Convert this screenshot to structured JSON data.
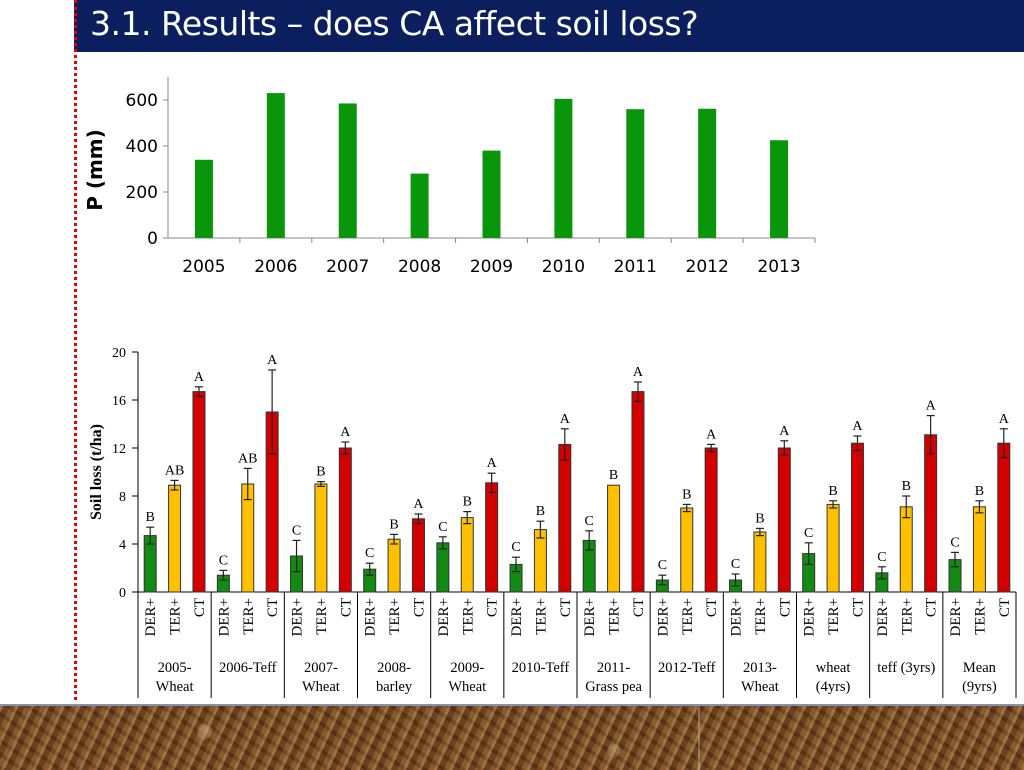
{
  "slide": {
    "title": "3.1. Results – does CA affect soil loss?"
  },
  "colors": {
    "header": "#0b1f5e",
    "DER+": "#138a13",
    "TER+": "#ffc000",
    "CT": "#d40000",
    "precip": "#0a960a"
  },
  "chart_data": [
    {
      "type": "bar",
      "title": "",
      "xlabel": "",
      "ylabel": "P (mm)",
      "ylim": [
        0,
        700
      ],
      "yticks": [
        "0",
        "200",
        "400",
        "600"
      ],
      "categories": [
        "2005",
        "2006",
        "2007",
        "2008",
        "2009",
        "2010",
        "2011",
        "2012",
        "2013"
      ],
      "values": [
        340,
        630,
        585,
        280,
        380,
        605,
        560,
        562,
        425
      ],
      "grid": false
    },
    {
      "type": "bar",
      "title": "",
      "ylabel": "Soil loss (t/ha)",
      "ylim": [
        0,
        20
      ],
      "yticks": [
        "0",
        "4",
        "8",
        "12",
        "16",
        "20"
      ],
      "series_names": [
        "DER+",
        "TER+",
        "CT"
      ],
      "categories": [
        "2005-\nWheat",
        "2006-Teff",
        "2007-\nWheat",
        "2008-\nbarley",
        "2009-\nWheat",
        "2010-Teff",
        "2011-\nGrass pea",
        "2012-Teff",
        "2013-\nWheat",
        "wheat\n(4yrs)",
        "teff (3yrs)",
        "Mean\n(9yrs)"
      ],
      "series": [
        {
          "name": "DER+",
          "values": [
            4.7,
            1.4,
            3.0,
            1.9,
            4.1,
            2.3,
            4.3,
            1.0,
            1.0,
            3.2,
            1.6,
            2.7
          ],
          "errors": [
            0.7,
            0.4,
            1.3,
            0.5,
            0.5,
            0.6,
            0.8,
            0.4,
            0.5,
            0.9,
            0.5,
            0.6
          ],
          "letters": [
            "B",
            "C",
            "C",
            "C",
            "C",
            "C",
            "C",
            "C",
            "C",
            "C",
            "C",
            "C"
          ]
        },
        {
          "name": "TER+",
          "values": [
            8.9,
            9.0,
            9.0,
            4.4,
            6.2,
            5.2,
            8.9,
            7.0,
            5.0,
            7.3,
            7.1,
            7.1
          ],
          "errors": [
            0.4,
            1.3,
            0.2,
            0.4,
            0.5,
            0.7,
            0.0,
            0.3,
            0.3,
            0.3,
            0.9,
            0.5
          ],
          "letters": [
            "AB",
            "AB",
            "B",
            "B",
            "B",
            "B",
            "B",
            "B",
            "B",
            "B",
            "B",
            "B"
          ]
        },
        {
          "name": "CT",
          "values": [
            16.7,
            15.0,
            12.0,
            6.1,
            9.1,
            12.3,
            16.7,
            12.0,
            12.0,
            12.4,
            13.1,
            12.4
          ],
          "errors": [
            0.4,
            3.5,
            0.5,
            0.4,
            0.8,
            1.3,
            0.8,
            0.3,
            0.6,
            0.6,
            1.6,
            1.2
          ],
          "letters": [
            "A",
            "A",
            "A",
            "A",
            "A",
            "A",
            "A",
            "A",
            "A",
            "A",
            "A",
            "A"
          ]
        }
      ],
      "grid": false
    }
  ]
}
